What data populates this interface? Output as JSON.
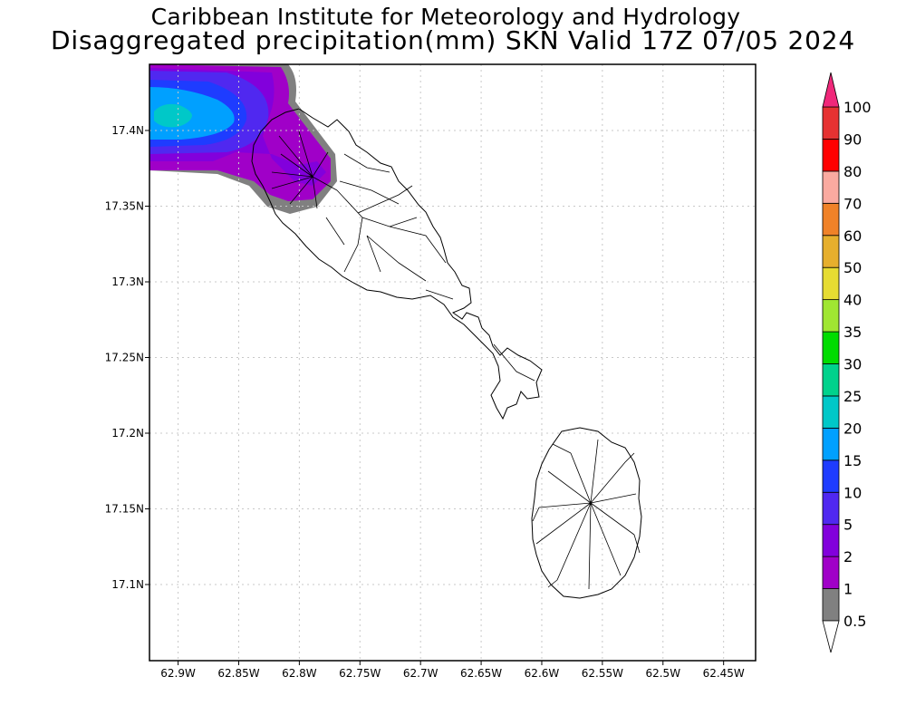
{
  "header": {
    "title_line1": "Caribbean Institute for Meteorology and Hydrology",
    "title_line2": "Disaggregated precipitation(mm) SKN Valid 17Z 07/05 2024"
  },
  "axes": {
    "x_ticks": [
      "62.9W",
      "62.85W",
      "62.8W",
      "62.75W",
      "62.7W",
      "62.65W",
      "62.6W",
      "62.55W",
      "62.5W",
      "62.45W"
    ],
    "y_ticks": [
      "17.4N",
      "17.35N",
      "17.3N",
      "17.25N",
      "17.2N",
      "17.15N",
      "17.1N"
    ],
    "x_tick_values": [
      -62.9,
      -62.85,
      -62.8,
      -62.75,
      -62.7,
      -62.65,
      -62.6,
      -62.55,
      -62.5,
      -62.45
    ],
    "y_tick_values": [
      17.4,
      17.35,
      17.3,
      17.25,
      17.2,
      17.15,
      17.1
    ],
    "lon_range": [
      -62.9236,
      -62.4236
    ],
    "lat_range": [
      17.0497,
      17.4437
    ],
    "grid": "dotted"
  },
  "colorbar": {
    "labels": [
      "0.5",
      "1",
      "2",
      "5",
      "10",
      "15",
      "20",
      "25",
      "30",
      "35",
      "40",
      "50",
      "60",
      "70",
      "80",
      "90",
      "100"
    ],
    "colors": [
      "#808080",
      "#a000c8",
      "#8200dc",
      "#5028f0",
      "#1e3cff",
      "#00a0ff",
      "#00c8c8",
      "#00d28c",
      "#00dc00",
      "#a0e632",
      "#e6dc32",
      "#e6af2d",
      "#f08228",
      "#faaaa0",
      "#ff0000",
      "#e63232",
      "#f0287a"
    ],
    "min_arrow_color": "#ffffff",
    "max_arrow_color": "#f0287a"
  },
  "precipitation": {
    "location": "northwest of St. Kitts",
    "peak_category": "20",
    "levels_present": [
      "0.5",
      "1",
      "2",
      "5",
      "10",
      "15",
      "20"
    ]
  },
  "islands": [
    "St. Kitts",
    "Nevis"
  ]
}
